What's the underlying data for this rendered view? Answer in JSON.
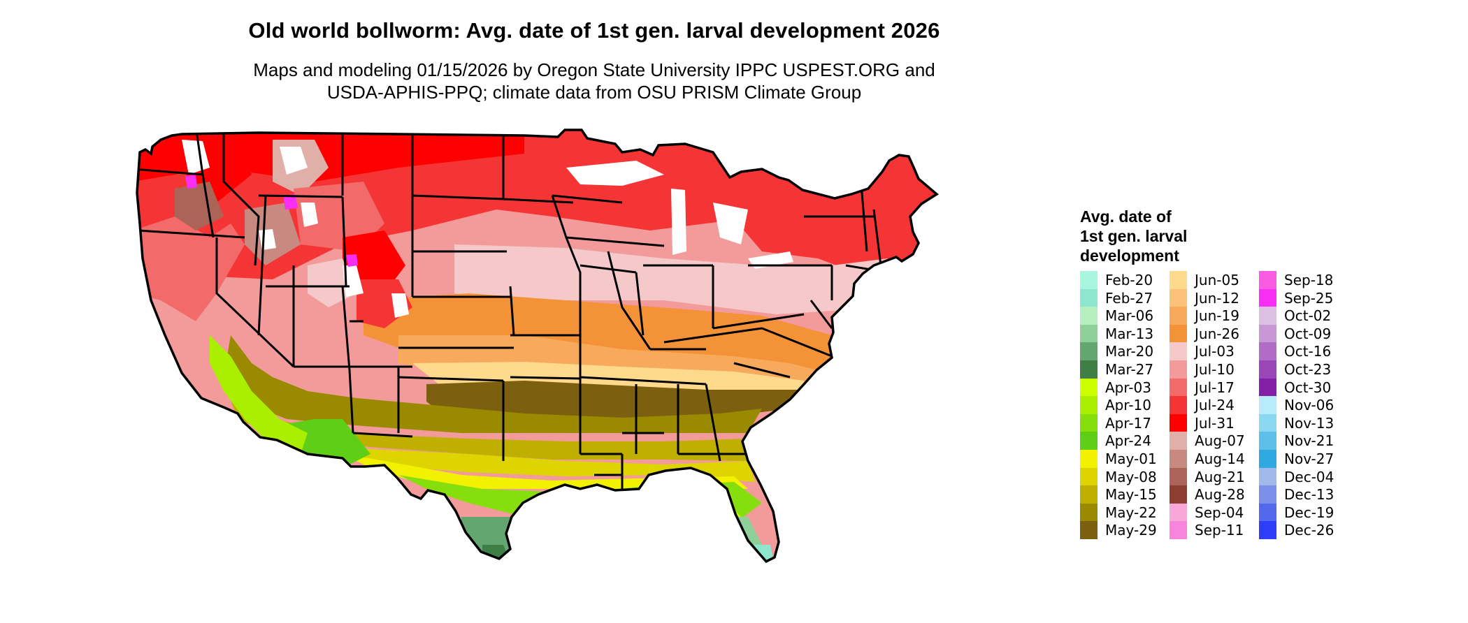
{
  "map": {
    "title": "Old world bollworm: Avg. date of 1st gen. larval development 2026",
    "subtitle_lines": [
      "Maps and modeling 01/15/2026 by Oregon State University IPPC USPEST.ORG and",
      "USDA-APHIS-PPQ; climate data from OSU PRISM Climate Group"
    ],
    "region": "Contiguous United States",
    "boundaries": "state outlines",
    "legend_title_lines": [
      "Avg. date of",
      "1st gen. larval",
      "development"
    ],
    "legend_columns": [
      [
        {
          "label": "Feb-20",
          "color": "#a8f5e0"
        },
        {
          "label": "Feb-27",
          "color": "#8ee6cf"
        },
        {
          "label": "Mar-06",
          "color": "#b6efbf"
        },
        {
          "label": "Mar-13",
          "color": "#8fcf9a"
        },
        {
          "label": "Mar-20",
          "color": "#64a66f"
        },
        {
          "label": "Mar-27",
          "color": "#3f7f45"
        },
        {
          "label": "Apr-03",
          "color": "#ccff00"
        },
        {
          "label": "Apr-10",
          "color": "#aaef00"
        },
        {
          "label": "Apr-17",
          "color": "#86de0c"
        },
        {
          "label": "Apr-24",
          "color": "#5ecf16"
        },
        {
          "label": "May-01",
          "color": "#f2f200"
        },
        {
          "label": "May-08",
          "color": "#ddd400"
        },
        {
          "label": "May-15",
          "color": "#bfb000"
        },
        {
          "label": "May-22",
          "color": "#9a8a00"
        },
        {
          "label": "May-29",
          "color": "#7d5f10"
        }
      ],
      [
        {
          "label": "Jun-05",
          "color": "#ffd98c"
        },
        {
          "label": "Jun-12",
          "color": "#fcc27a"
        },
        {
          "label": "Jun-19",
          "color": "#f8aa5c"
        },
        {
          "label": "Jun-26",
          "color": "#f39236"
        },
        {
          "label": "Jul-03",
          "color": "#f5c9c9"
        },
        {
          "label": "Jul-10",
          "color": "#f39a9a"
        },
        {
          "label": "Jul-17",
          "color": "#f26a6a"
        },
        {
          "label": "Jul-24",
          "color": "#f53535"
        },
        {
          "label": "Jul-31",
          "color": "#ff0000"
        },
        {
          "label": "Aug-07",
          "color": "#e0b0a8"
        },
        {
          "label": "Aug-14",
          "color": "#c88a80"
        },
        {
          "label": "Aug-21",
          "color": "#ad6458"
        },
        {
          "label": "Aug-28",
          "color": "#8e3e30"
        },
        {
          "label": "Sep-04",
          "color": "#f8a8d8"
        },
        {
          "label": "Sep-11",
          "color": "#f884de"
        }
      ],
      [
        {
          "label": "Sep-18",
          "color": "#f85ae2"
        },
        {
          "label": "Sep-25",
          "color": "#f82ef4"
        },
        {
          "label": "Oct-02",
          "color": "#dcc0e4"
        },
        {
          "label": "Oct-09",
          "color": "#c897d6"
        },
        {
          "label": "Oct-16",
          "color": "#b06cc6"
        },
        {
          "label": "Oct-23",
          "color": "#9a46b8"
        },
        {
          "label": "Oct-30",
          "color": "#8420a8"
        },
        {
          "label": "Nov-06",
          "color": "#b8ecfc"
        },
        {
          "label": "Nov-13",
          "color": "#8ad7f2"
        },
        {
          "label": "Nov-21",
          "color": "#5ec0ea"
        },
        {
          "label": "Nov-27",
          "color": "#30a8e0"
        },
        {
          "label": "Dec-04",
          "color": "#a0b8ea"
        },
        {
          "label": "Dec-13",
          "color": "#7a90e8"
        },
        {
          "label": "Dec-19",
          "color": "#5468ee"
        },
        {
          "label": "Dec-26",
          "color": "#2e3ef8"
        }
      ]
    ]
  }
}
